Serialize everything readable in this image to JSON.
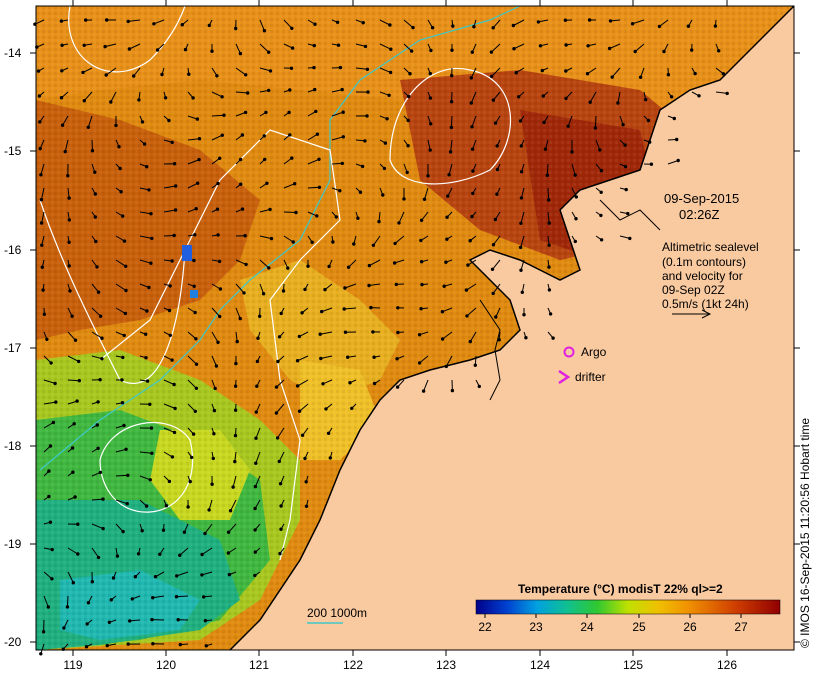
{
  "map": {
    "date": "09-Sep-2015",
    "time": "02:26Z",
    "altimetry_lines": [
      "Altimetric sealevel",
      "(0.1m contours)",
      "and velocity for",
      "09-Sep 02Z",
      "0.5m/s (1kt 24h)"
    ],
    "legend_argo": "Argo",
    "legend_drifter": "drifter",
    "depth_label": "200  1000m",
    "colorbar_title": "Temperature  (°C)  modisT 22% ql>=2",
    "colorbar_ticks": [
      "22",
      "23",
      "24",
      "25",
      "26",
      "27"
    ],
    "lat_ticks": [
      "-14",
      "-15",
      "-16",
      "-17",
      "-18",
      "-19",
      "-20"
    ],
    "lon_ticks": [
      "119",
      "120",
      "121",
      "122",
      "123",
      "124",
      "125",
      "126"
    ],
    "credit": "© IMOS 16-Sep-2015 11:20:56 Hobart time",
    "colors": {
      "land": "#f9c9a0",
      "argo": "#e020e0",
      "depth_200": "#40c8c8",
      "depth_1000": "#ffffff",
      "colorbar": [
        "#00008a",
        "#0050d0",
        "#00b0e0",
        "#10c080",
        "#40d020",
        "#e0e000",
        "#f0a000",
        "#e06000",
        "#c02000",
        "#900000"
      ]
    }
  }
}
